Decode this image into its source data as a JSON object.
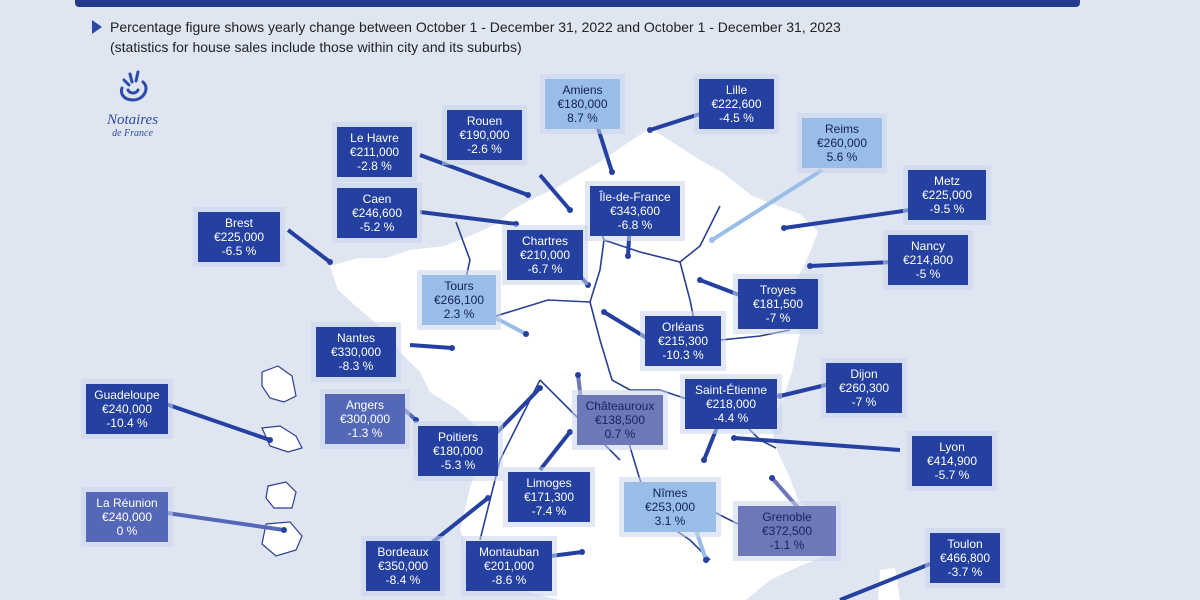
{
  "header": {
    "note_line1": "Percentage figure shows yearly change between October 1 - December 31, 2022 and October 1 - December 31, 2023",
    "note_line2": "(statistics for house sales include those within city and its suburbs)"
  },
  "logo": {
    "brand": "Notaires",
    "sub": "de France"
  },
  "colors": {
    "dark": "#2440a0",
    "mid": "#5568b8",
    "light": "#98bde6",
    "gray": "#6d78b8",
    "map": "#ffffff",
    "background": "#dfe6f2"
  },
  "cities": [
    {
      "name": "Amiens",
      "price": "€180,000",
      "change": "8.7 %"
    },
    {
      "name": "Lille",
      "price": "€222,600",
      "change": "-4.5 %"
    },
    {
      "name": "Rouen",
      "price": "€190,000",
      "change": "-2.6 %"
    },
    {
      "name": "Le Havre",
      "price": "€211,000",
      "change": "-2.8 %"
    },
    {
      "name": "Reims",
      "price": "€260,000",
      "change": "5.6 %"
    },
    {
      "name": "Caen",
      "price": "€246,600",
      "change": "-5.2 %"
    },
    {
      "name": "Île-de-France",
      "price": "€343,600",
      "change": "-6.8 %"
    },
    {
      "name": "Metz",
      "price": "€225,000",
      "change": "-9.5 %"
    },
    {
      "name": "Brest",
      "price": "€225,000",
      "change": "-6.5 %"
    },
    {
      "name": "Chartres",
      "price": "€210,000",
      "change": "-6.7 %"
    },
    {
      "name": "Nancy",
      "price": "€214,800",
      "change": "-5 %"
    },
    {
      "name": "Tours",
      "price": "€266,100",
      "change": "2.3 %"
    },
    {
      "name": "Troyes",
      "price": "€181,500",
      "change": "-7 %"
    },
    {
      "name": "Orléans",
      "price": "€215,300",
      "change": "-10.3 %"
    },
    {
      "name": "Nantes",
      "price": "€330,000",
      "change": "-8.3 %"
    },
    {
      "name": "Dijon",
      "price": "€260,300",
      "change": "-7 %"
    },
    {
      "name": "Guadeloupe",
      "price": "€240,000",
      "change": "-10.4 %"
    },
    {
      "name": "Angers",
      "price": "€300,000",
      "change": "-1.3 %"
    },
    {
      "name": "Saint-Étienne",
      "price": "€218,000",
      "change": "-4.4 %"
    },
    {
      "name": "Châteauroux",
      "price": "€138,500",
      "change": "0.7 %"
    },
    {
      "name": "Poitiers",
      "price": "€180,000",
      "change": "-5.3 %"
    },
    {
      "name": "Lyon",
      "price": "€414,900",
      "change": "-5.7 %"
    },
    {
      "name": "Limoges",
      "price": "€171,300",
      "change": "-7.4 %"
    },
    {
      "name": "La Réunion",
      "price": "€240,000",
      "change": "0 %"
    },
    {
      "name": "Nîmes",
      "price": "€253,000",
      "change": "3.1 %"
    },
    {
      "name": "Grenoble",
      "price": "€372,500",
      "change": "-1.1 %"
    },
    {
      "name": "Bordeaux",
      "price": "€350,000",
      "change": "-8.4 %"
    },
    {
      "name": "Montauban",
      "price": "€201,000",
      "change": "-8.6 %"
    },
    {
      "name": "Toulon",
      "price": "€466,800",
      "change": "-3.7 %"
    }
  ]
}
